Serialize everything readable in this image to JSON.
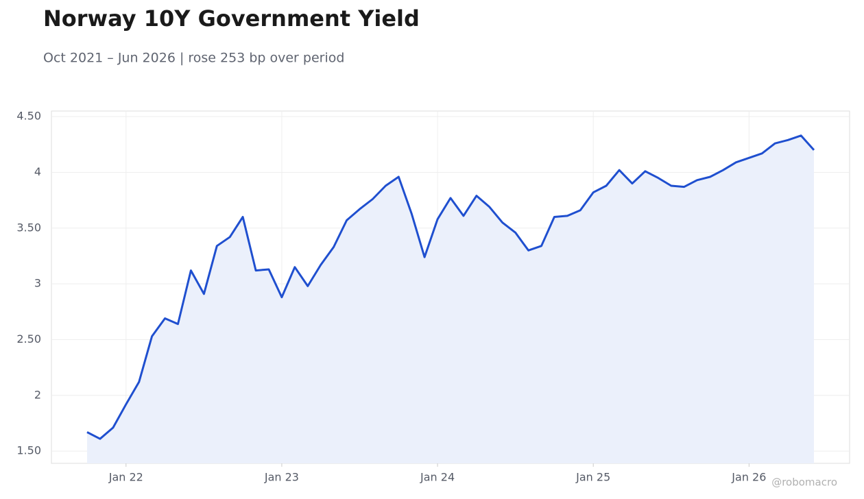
{
  "chart_data": {
    "type": "line",
    "title": "Norway 10Y Government Yield",
    "subtitle": "Oct 2021 – Jun 2026 | rose 253 bp over period",
    "watermark": "@robomacro",
    "x": [
      "2021-10",
      "2021-11",
      "2021-12",
      "2022-01",
      "2022-02",
      "2022-03",
      "2022-04",
      "2022-05",
      "2022-06",
      "2022-07",
      "2022-08",
      "2022-09",
      "2022-10",
      "2022-11",
      "2022-12",
      "2023-01",
      "2023-02",
      "2023-03",
      "2023-04",
      "2023-05",
      "2023-06",
      "2023-07",
      "2023-08",
      "2023-09",
      "2023-10",
      "2023-11",
      "2023-12",
      "2024-01",
      "2024-02",
      "2024-03",
      "2024-04",
      "2024-05",
      "2024-06",
      "2024-07",
      "2024-08",
      "2024-09",
      "2024-10",
      "2024-11",
      "2024-12",
      "2025-01",
      "2025-02",
      "2025-03",
      "2025-04",
      "2025-05",
      "2025-06",
      "2025-07",
      "2025-08",
      "2025-09",
      "2025-10",
      "2025-11",
      "2025-12",
      "2026-01",
      "2026-02",
      "2026-03",
      "2026-04",
      "2026-05",
      "2026-06"
    ],
    "series": [
      {
        "name": "Norway 10Y",
        "color": "#1f4fcf",
        "fill": "#ebf0fb",
        "values": [
          1.67,
          1.61,
          1.71,
          1.92,
          2.12,
          2.53,
          2.69,
          2.64,
          3.12,
          2.91,
          3.34,
          3.42,
          3.6,
          3.12,
          3.13,
          2.88,
          3.15,
          2.98,
          3.17,
          3.33,
          3.57,
          3.67,
          3.76,
          3.88,
          3.96,
          3.63,
          3.24,
          3.58,
          3.77,
          3.61,
          3.79,
          3.69,
          3.55,
          3.46,
          3.3,
          3.34,
          3.6,
          3.61,
          3.66,
          3.82,
          3.88,
          4.02,
          3.9,
          4.01,
          3.95,
          3.88,
          3.87,
          3.93,
          3.96,
          4.02,
          4.09,
          4.13,
          4.17,
          4.26,
          4.29,
          4.33,
          4.2
        ]
      }
    ],
    "xticks": [
      {
        "value": "2022-01",
        "label": "Jan 22"
      },
      {
        "value": "2023-01",
        "label": "Jan 23"
      },
      {
        "value": "2024-01",
        "label": "Jan 24"
      },
      {
        "value": "2025-01",
        "label": "Jan 25"
      },
      {
        "value": "2026-01",
        "label": "Jan 26"
      }
    ],
    "ylim": [
      1.39,
      4.55
    ],
    "yticks": [
      {
        "value": 1.5,
        "label": "1.50"
      },
      2,
      {
        "value": 2.5,
        "label": "2.50"
      },
      3,
      {
        "value": 3.5,
        "label": "3.50"
      },
      4,
      {
        "value": 4.5,
        "label": "4.50"
      }
    ],
    "grid": true
  }
}
